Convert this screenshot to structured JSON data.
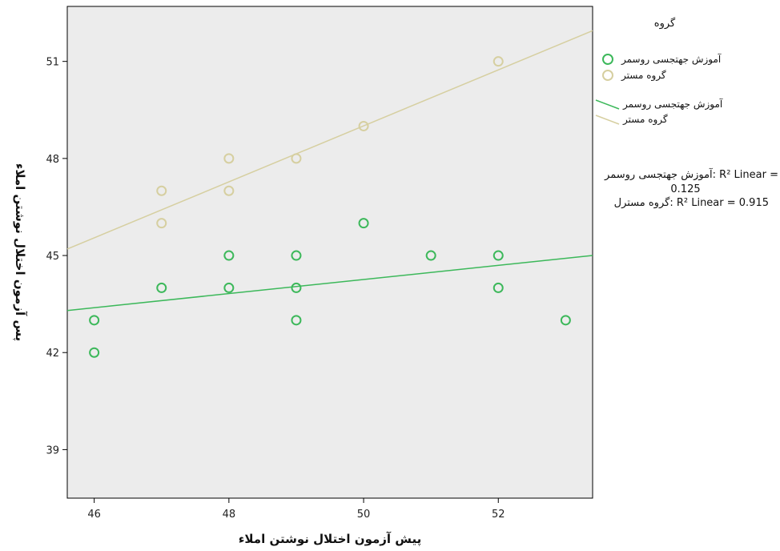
{
  "chart_data": {
    "type": "scatter",
    "xlabel": "پیش آزمون اختلال نوشتن املاء",
    "ylabel": "پس آزمون اختلال نوشتن املاء",
    "xlim": [
      45.6,
      53.4
    ],
    "ylim": [
      37.5,
      52.7
    ],
    "xticks": [
      46,
      48,
      50,
      52
    ],
    "yticks": [
      39,
      42,
      45,
      48,
      51
    ],
    "grid": false,
    "plot_background": "#ececec",
    "legend": {
      "title": "گروه",
      "position": "right",
      "marker_entries": [
        "آموزش جهتجسی روسمر",
        "گروه مستر"
      ],
      "line_entries": [
        "آموزش جهتجسی روسمر",
        "گروه مستر"
      ],
      "r2_lines": [
        "آموزش جهتجسی روسمر: R² Linear =",
        "0.125",
        "گروه مسترل: R² Linear = 0.915"
      ]
    },
    "series": [
      {
        "name": "آموزش جهتجسی روسمر",
        "color": "#3cb85a",
        "x": [
          46,
          46,
          47,
          48,
          48,
          49,
          49,
          49,
          50,
          51,
          52,
          52,
          53
        ],
        "y": [
          43,
          42,
          44,
          45,
          44,
          45,
          44,
          43,
          46,
          45,
          45,
          44,
          43
        ],
        "fit_line": {
          "x": [
            45.6,
            53.4
          ],
          "y": [
            43.3,
            45.0
          ]
        }
      },
      {
        "name": "گروه مستر",
        "color": "#d6cfa0",
        "x": [
          47,
          47,
          48,
          48,
          49,
          50,
          52
        ],
        "y": [
          47,
          46,
          48,
          47,
          48,
          49,
          51
        ],
        "fit_line": {
          "x": [
            45.6,
            53.4
          ],
          "y": [
            45.2,
            51.95
          ]
        }
      }
    ]
  }
}
